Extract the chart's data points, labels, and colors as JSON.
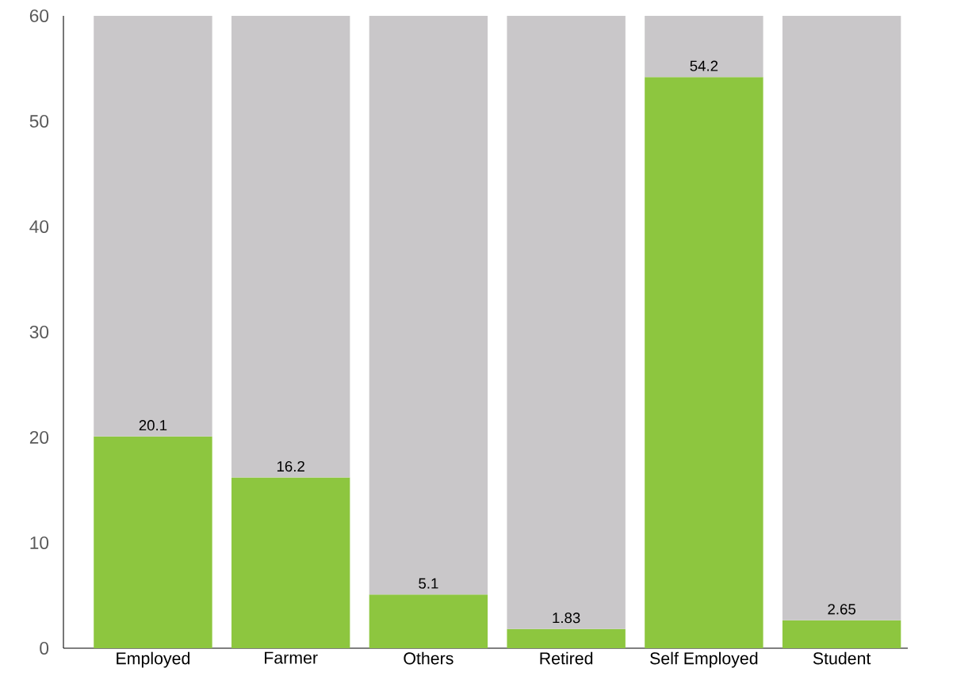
{
  "chart_data": {
    "type": "bar",
    "categories": [
      "Employed",
      "Farmer",
      "Others",
      "Retired",
      "Self Employed",
      "Student"
    ],
    "series": [
      {
        "color": "#8dc63f",
        "values": [
          20.1,
          16.2,
          5.1,
          1.83,
          54.2,
          2.65
        ],
        "value_labels": [
          "20.1",
          "16.2",
          "5.1",
          "1.83",
          "54.2",
          "2.65"
        ]
      },
      {
        "color": "#c9c7c9",
        "values": [
          39.9,
          43.8,
          54.9,
          58.17,
          5.8,
          57.35
        ]
      }
    ],
    "stacked": true,
    "ylim": [
      0,
      60
    ],
    "yticks": [
      0,
      10,
      20,
      30,
      40,
      50,
      60
    ],
    "grid": false
  }
}
